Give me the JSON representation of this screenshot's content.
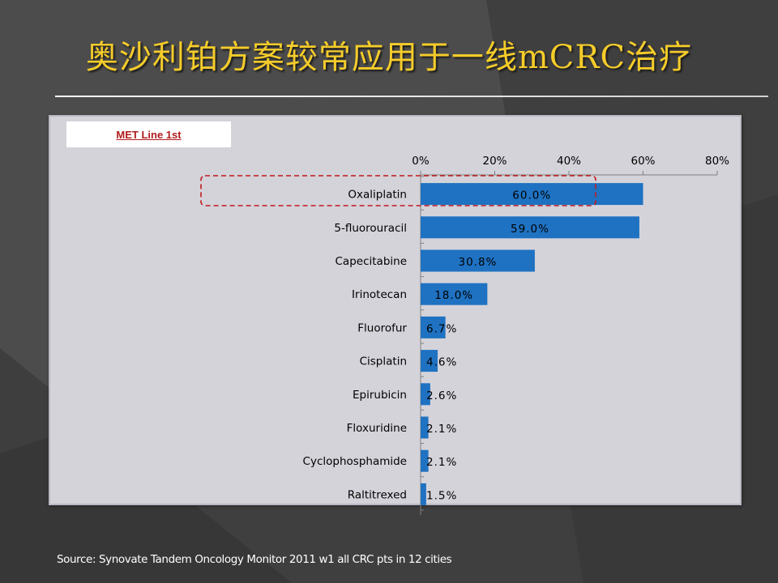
{
  "slide": {
    "title": "奥沙利铂方案较常应用于一线mCRC治疗",
    "source": "Source: Synovate Tandem Oncology Monitor 2011 w1 all CRC pts in 12 cities"
  },
  "colors": {
    "bar": "#1f72c2",
    "title": "#f5cc2a",
    "highlight": "#c0191e"
  },
  "chart_data": {
    "type": "bar",
    "orientation": "horizontal",
    "legend": "MET Line 1st",
    "categories": [
      "Oxaliplatin",
      "5-fluorouracil",
      "Capecitabine",
      "Irinotecan",
      "Fluorofur",
      "Cisplatin",
      "Epirubicin",
      "Floxuridine",
      "Cyclophosphamide",
      "Raltitrexed"
    ],
    "values": [
      60.0,
      59.0,
      30.8,
      18.0,
      6.7,
      4.6,
      2.6,
      2.1,
      2.1,
      1.5
    ],
    "data_labels": [
      "60.0%",
      "59.0%",
      "30.8%",
      "18.0%",
      "6.7%",
      "4.6%",
      "2.6%",
      "2.1%",
      "2.1%",
      "1.5%"
    ],
    "x_ticks": [
      0,
      20,
      40,
      60,
      80
    ],
    "x_tick_labels": [
      "0%",
      "20%",
      "40%",
      "60%",
      "80%"
    ],
    "xlim": [
      0,
      80
    ],
    "axis_position": "top",
    "highlighted_category": "Oxaliplatin",
    "grid": false
  }
}
